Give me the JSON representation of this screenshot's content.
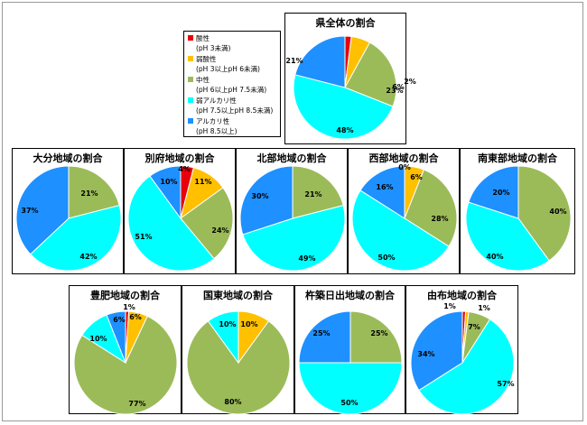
{
  "legend": {
    "items": [
      {
        "name": "酸性",
        "range": "(pH 3未満)",
        "color": "#e8000b"
      },
      {
        "name": "弱酸性",
        "range": "(pH 3以上pH 6未満)",
        "color": "#ffc000"
      },
      {
        "name": "中性",
        "range": "(pH 6以上pH 7.5未満)",
        "color": "#9bbb59"
      },
      {
        "name": "弱アルカリ性",
        "range": "(pH 7.5以上pH 8.5未満)",
        "color": "#00ffff"
      },
      {
        "name": "アルカリ性",
        "range": "(pH 8.5以上)",
        "color": "#1e90ff"
      }
    ]
  },
  "chart_data": [
    {
      "type": "pie",
      "title": "県全体の割合",
      "categories": [
        "酸性",
        "弱酸性",
        "中性",
        "弱アルカリ性",
        "アルカリ性"
      ],
      "values": [
        2,
        6,
        23,
        48,
        21
      ],
      "labels": [
        "2%",
        "6%",
        "23%",
        "48%",
        "21%"
      ]
    },
    {
      "type": "pie",
      "title": "大分地域の割合",
      "categories": [
        "中性",
        "弱アルカリ性",
        "アルカリ性"
      ],
      "values": [
        21,
        42,
        37
      ],
      "labels": [
        "21%",
        "42%",
        "37%"
      ]
    },
    {
      "type": "pie",
      "title": "別府地域の割合",
      "categories": [
        "酸性",
        "弱酸性",
        "中性",
        "弱アルカリ性",
        "アルカリ性"
      ],
      "values": [
        4,
        11,
        24,
        51,
        10
      ],
      "labels": [
        "4%",
        "11%",
        "24%",
        "51%",
        "10%"
      ]
    },
    {
      "type": "pie",
      "title": "北部地域の割合",
      "categories": [
        "中性",
        "弱アルカリ性",
        "アルカリ性"
      ],
      "values": [
        21,
        49,
        30
      ],
      "labels": [
        "21%",
        "49%",
        "30%"
      ]
    },
    {
      "type": "pie",
      "title": "西部地域の割合",
      "categories": [
        "酸性",
        "弱酸性",
        "中性",
        "弱アルカリ性",
        "アルカリ性"
      ],
      "values": [
        0,
        6,
        28,
        50,
        16
      ],
      "labels": [
        "0%",
        "6%",
        "28%",
        "50%",
        "16%"
      ]
    },
    {
      "type": "pie",
      "title": "南東部地域の割合",
      "categories": [
        "中性",
        "弱アルカリ性",
        "アルカリ性"
      ],
      "values": [
        40,
        40,
        20
      ],
      "labels": [
        "40%",
        "40%",
        "20%"
      ]
    },
    {
      "type": "pie",
      "title": "豊肥地域の割合",
      "categories": [
        "酸性",
        "弱酸性",
        "中性",
        "弱アルカリ性",
        "アルカリ性"
      ],
      "values": [
        1,
        6,
        77,
        10,
        6
      ],
      "labels": [
        "1%",
        "6%",
        "77%",
        "10%",
        "6%"
      ]
    },
    {
      "type": "pie",
      "title": "国東地域の割合",
      "categories": [
        "弱酸性",
        "中性",
        "弱アルカリ性"
      ],
      "values": [
        10,
        80,
        10
      ],
      "labels": [
        "10%",
        "80%",
        "10%"
      ]
    },
    {
      "type": "pie",
      "title": "杵築日出地域の割合",
      "categories": [
        "中性",
        "弱アルカリ性",
        "アルカリ性"
      ],
      "values": [
        25,
        50,
        25
      ],
      "labels": [
        "25%",
        "50%",
        "25%"
      ]
    },
    {
      "type": "pie",
      "title": "由布地域の割合",
      "categories": [
        "酸性",
        "弱酸性",
        "中性",
        "弱アルカリ性",
        "アルカリ性"
      ],
      "values": [
        1,
        1,
        7,
        57,
        34
      ],
      "labels": [
        "1%",
        "1%",
        "7%",
        "57%",
        "34%"
      ]
    }
  ]
}
